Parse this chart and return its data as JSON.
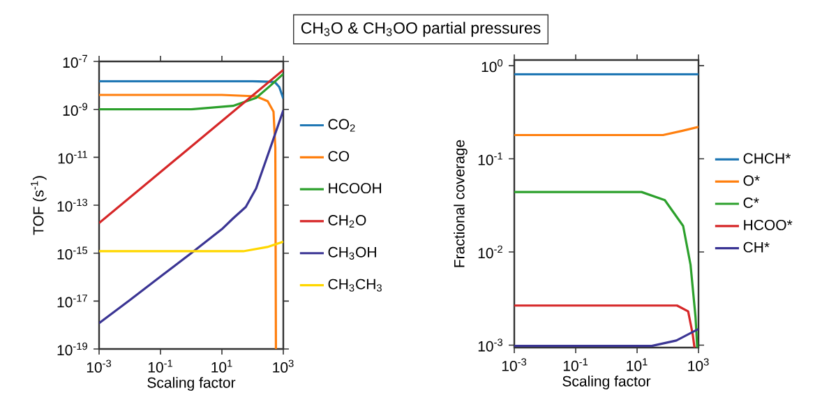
{
  "chart_data": [
    {
      "type": "line",
      "title": "CH$_{3}$O & CH$_{3}$OO partial pressures",
      "xlabel": "Scaling factor",
      "ylabel": "TOF (s$^{-1}$)",
      "log": "xy",
      "legend": "right",
      "grid": false,
      "xlim": [
        0.001,
        1000
      ],
      "ylim": [
        1e-19,
        1e-07
      ],
      "xticks": [
        {
          "value": 0.001,
          "label": "10$^{-3}$"
        },
        {
          "value": 0.1,
          "label": "10$^{-1}$"
        },
        {
          "value": 10,
          "label": "10$^{1}$"
        },
        {
          "value": 1000,
          "label": "10$^{3}$"
        }
      ],
      "yticks": [
        {
          "value": 1e-19,
          "label": "10$^{-19}$"
        },
        {
          "value": 1e-17,
          "label": "10$^{-17}$"
        },
        {
          "value": 1e-15,
          "label": "10$^{-15}$"
        },
        {
          "value": 1e-13,
          "label": "10$^{-13}$"
        },
        {
          "value": 1e-11,
          "label": "10$^{-11}$"
        },
        {
          "value": 1e-09,
          "label": "10$^{-9}$"
        },
        {
          "value": 1e-07,
          "label": "10$^{-7}$"
        }
      ],
      "series": [
        {
          "name": "CO$_{2}$",
          "color": "#1f77b4",
          "x": [
            0.001,
            100,
            525,
            740,
            1000
          ],
          "values": [
            1.5e-08,
            1.5e-08,
            1.4e-08,
            8.5e-09,
            2.8e-09
          ]
        },
        {
          "name": "CO",
          "color": "#ff7f0e",
          "x": [
            0.001,
            10,
            130,
            310,
            480,
            550,
            575
          ],
          "values": [
            4e-09,
            4e-09,
            3.5e-09,
            2.2e-09,
            8e-10,
            2.5e-11,
            1e-19
          ]
        },
        {
          "name": "HCOOH",
          "color": "#2ca02c",
          "x": [
            0.001,
            1,
            23,
            130,
            370,
            1000
          ],
          "values": [
            1e-09,
            1e-09,
            1.4e-09,
            3e-09,
            9.5e-09,
            3e-08
          ]
        },
        {
          "name": "CH$_{2}$O",
          "color": "#d62728",
          "x": [
            0.001,
            1,
            1000
          ],
          "values": [
            1.8e-14,
            2.8e-11,
            4.4e-08
          ]
        },
        {
          "name": "CH$_{3}$OH",
          "color": "#3b3594",
          "x": [
            0.001,
            0.01,
            0.1,
            1,
            10,
            23,
            60,
            130,
            370,
            1000
          ],
          "values": [
            1.2e-18,
            1.1e-17,
            1.05e-16,
            1e-15,
            1e-14,
            2.8e-14,
            8.5e-14,
            5e-13,
            2.3e-11,
            9.1e-10
          ]
        },
        {
          "name": "CH$_{3}$CH$_{3}$",
          "color": "#ffd700",
          "x": [
            0.001,
            50,
            300,
            1000
          ],
          "values": [
            1.2e-15,
            1.2e-15,
            1.8e-15,
            3e-15
          ]
        }
      ]
    },
    {
      "type": "line",
      "xlabel": "Scaling factor",
      "ylabel": "Fractional coverage",
      "log": "xy",
      "legend": "right",
      "grid": false,
      "xlim": [
        0.001,
        1000
      ],
      "ylim": [
        0.00094,
        1.15
      ],
      "xticks": [
        {
          "value": 0.001,
          "label": "10$^{-3}$"
        },
        {
          "value": 0.1,
          "label": "10$^{-1}$"
        },
        {
          "value": 10,
          "label": "10$^{1}$"
        },
        {
          "value": 1000,
          "label": "10$^{3}$"
        }
      ],
      "yticks": [
        {
          "value": 0.001,
          "label": "10$^{-3}$"
        },
        {
          "value": 0.01,
          "label": "10$^{-2}$"
        },
        {
          "value": 0.1,
          "label": "10$^{-1}$"
        },
        {
          "value": 1,
          "label": "10$^{0}$"
        }
      ],
      "series": [
        {
          "name": "CHCH*",
          "color": "#1f77b4",
          "x": [
            0.001,
            1000
          ],
          "values": [
            0.81,
            0.81
          ]
        },
        {
          "name": "O*",
          "color": "#ff7f0e",
          "x": [
            0.001,
            70,
            300,
            1000
          ],
          "values": [
            0.18,
            0.18,
            0.2,
            0.22
          ]
        },
        {
          "name": "C*",
          "color": "#2ca02c",
          "x": [
            0.001,
            14,
            80,
            316,
            550,
            800,
            910
          ],
          "values": [
            0.044,
            0.044,
            0.036,
            0.019,
            0.0073,
            0.002,
            0.00094
          ]
        },
        {
          "name": "HCOO*",
          "color": "#d62728",
          "x": [
            0.001,
            200,
            460,
            650,
            740
          ],
          "values": [
            0.00266,
            0.00266,
            0.0023,
            0.0013,
            0.00094
          ]
        },
        {
          "name": "CH*",
          "color": "#3b3594",
          "x": [
            0.001,
            30,
            190,
            1000
          ],
          "values": [
            0.00098,
            0.00098,
            0.00112,
            0.00149
          ]
        }
      ]
    }
  ]
}
